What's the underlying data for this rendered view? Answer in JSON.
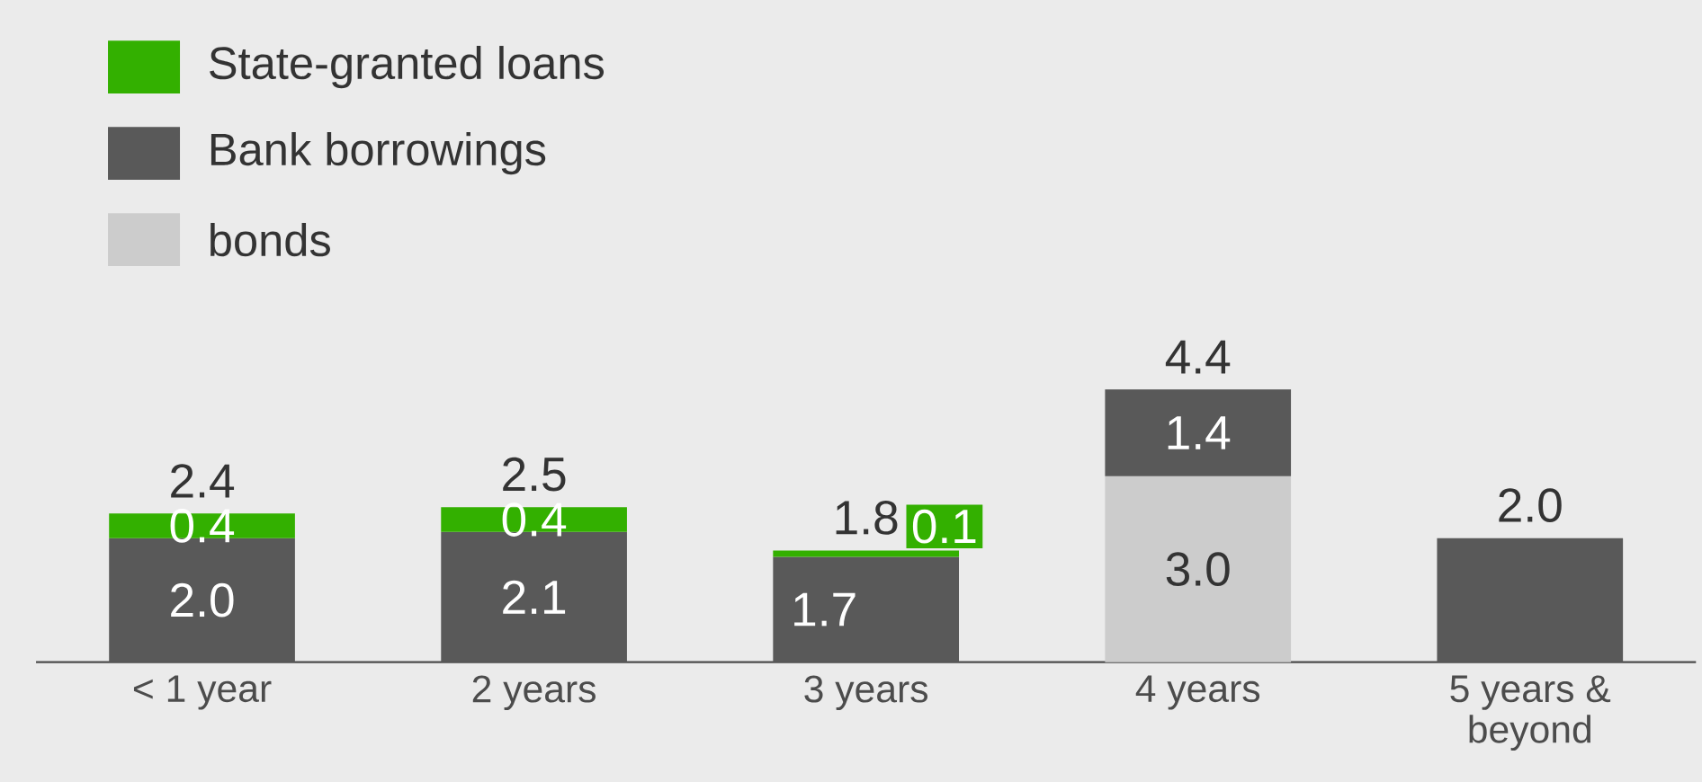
{
  "chart_data": {
    "type": "bar",
    "stacked": true,
    "categories": [
      "< 1 year",
      "2 years",
      "3 years",
      "4 years",
      "5 years & beyond"
    ],
    "series": [
      {
        "name": "bonds",
        "color": "#cccccc",
        "values": [
          null,
          null,
          null,
          3.0,
          null
        ],
        "value_labels": [
          null,
          null,
          null,
          "3.0",
          null
        ]
      },
      {
        "name": "Bank borrowings",
        "color": "#595959",
        "values": [
          2.0,
          2.1,
          1.7,
          1.4,
          2.0
        ],
        "value_labels": [
          "2.0",
          "2.1",
          "1.7",
          "1.4",
          null
        ]
      },
      {
        "name": "State-granted loans",
        "color": "#33b000",
        "values": [
          0.4,
          0.4,
          0.1,
          null,
          null
        ],
        "value_labels": [
          "0.4",
          "0.4",
          "0.1",
          null,
          null
        ]
      }
    ],
    "totals": [
      "2.4",
      "2.5",
      "1.8",
      "4.4",
      "2.0"
    ],
    "legend": "top left"
  }
}
